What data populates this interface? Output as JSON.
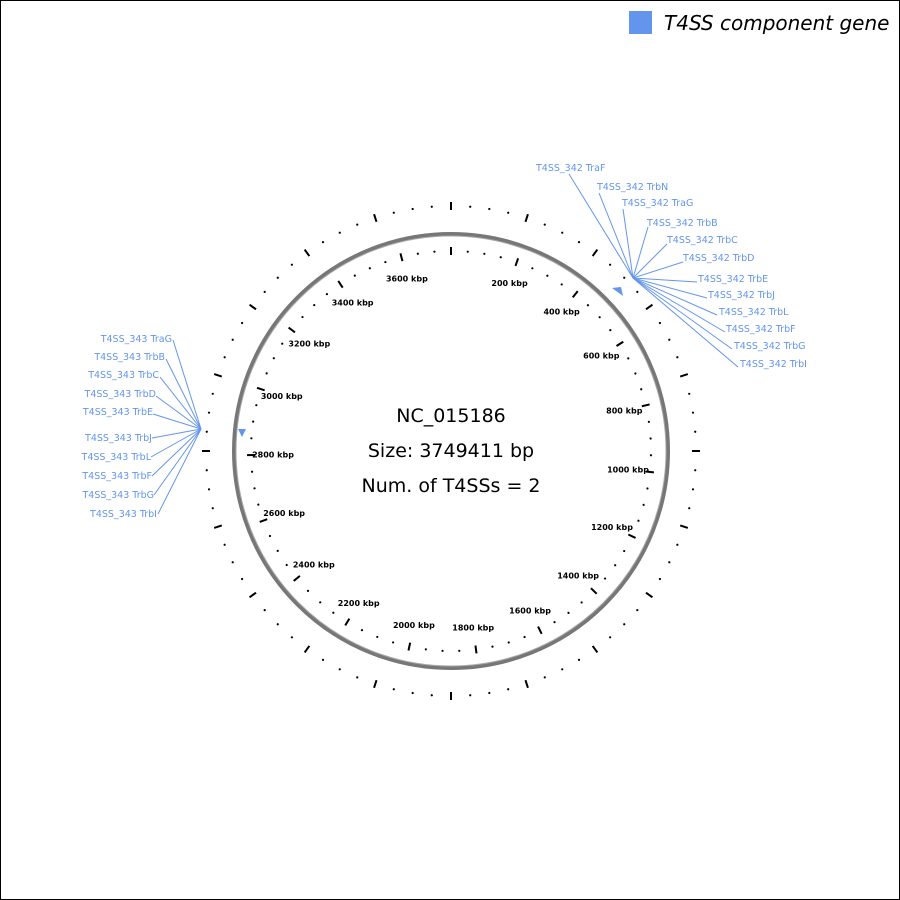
{
  "legend": {
    "label": "T4SS component gene",
    "color": "#6495ED"
  },
  "genome": {
    "accession": "NC_015186",
    "size_text": "Size: 3749411 bp",
    "count_text": "Num. of T4SSs = 2",
    "size_bp": 3749411
  },
  "scale_labels": [
    "200 kbp",
    "400 kbp",
    "600 kbp",
    "800 kbp",
    "1000 kbp",
    "1200 kbp",
    "1400 kbp",
    "1600 kbp",
    "1800 kbp",
    "2000 kbp",
    "2200 kbp",
    "2400 kbp",
    "2600 kbp",
    "2800 kbp",
    "3000 kbp",
    "3200 kbp",
    "3400 kbp",
    "3600 kbp"
  ],
  "systems": [
    {
      "name": "T4SS_342",
      "genes": [
        "T4SS_342 TraF",
        "T4SS_342 TrbN",
        "T4SS_342 TraG",
        "T4SS_342 TrbB",
        "T4SS_342 TrbC",
        "T4SS_342 TrbD",
        "T4SS_342 TrbE",
        "T4SS_342 TrbJ",
        "T4SS_342 TrbL",
        "T4SS_342 TrbF",
        "T4SS_342 TrbG",
        "T4SS_342 TrbI"
      ]
    },
    {
      "name": "T4SS_343",
      "genes": [
        "T4SS_343 TraG",
        "T4SS_343 TrbB",
        "T4SS_343 TrbC",
        "T4SS_343 TrbD",
        "T4SS_343 TrbE",
        "T4SS_343 TrbJ",
        "T4SS_343 TrbL",
        "T4SS_343 TrbF",
        "T4SS_343 TrbG",
        "T4SS_343 TrbI"
      ]
    }
  ]
}
